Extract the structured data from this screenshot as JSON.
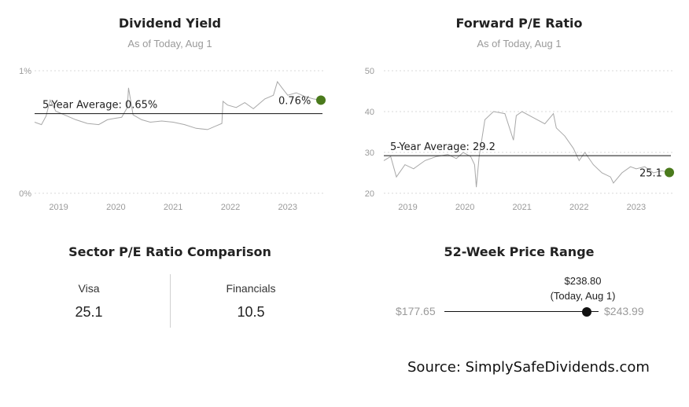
{
  "dividend_yield": {
    "title": "Dividend Yield",
    "subtitle": "As of Today, Aug 1",
    "average_label": "5-Year Average: 0.65%",
    "current_label": "0.76%",
    "colors": {
      "series": "#a8a8a8",
      "average": "#111111",
      "current_dot": "#4a7a1c"
    }
  },
  "forward_pe": {
    "title": "Forward P/E Ratio",
    "subtitle": "As of Today, Aug 1",
    "average_label": "5-Year Average: 29.2",
    "current_label": "25.1",
    "colors": {
      "series": "#a8a8a8",
      "average": "#111111",
      "current_dot": "#4a7a1c"
    }
  },
  "sector_comparison": {
    "title": "Sector P/E Ratio Comparison",
    "items": [
      {
        "name": "Visa",
        "value": "25.1"
      },
      {
        "name": "Financials",
        "value": "10.5"
      }
    ]
  },
  "price_range": {
    "title": "52-Week Price Range",
    "low": "$177.65",
    "high": "$243.99",
    "current": "$238.80",
    "current_note": "(Today, Aug 1)",
    "position_fraction": 0.922
  },
  "source": "Source: SimplySafeDividends.com",
  "chart_data": [
    {
      "type": "line",
      "title": "Dividend Yield",
      "subtitle": "As of Today, Aug 1",
      "ylim": [
        0,
        1
      ],
      "yticks": [
        0,
        1
      ],
      "ytick_labels": [
        "0%",
        "1%"
      ],
      "x_range": [
        2018.58,
        2023.58
      ],
      "xticks": [
        2019,
        2020,
        2021,
        2022,
        2023
      ],
      "xtick_labels": [
        "2019",
        "2020",
        "2021",
        "2022",
        "2023"
      ],
      "grid": true,
      "series": [
        {
          "x": [
            2018.58,
            2018.7,
            2018.78,
            2018.85,
            2018.95,
            2019.1,
            2019.3,
            2019.5,
            2019.7,
            2019.85,
            2019.97,
            2020.1,
            2020.2,
            2020.22,
            2020.3,
            2020.45,
            2020.6,
            2020.8,
            2021.0,
            2021.2,
            2021.4,
            2021.6,
            2021.75,
            2021.85,
            2021.87,
            2021.95,
            2022.1,
            2022.25,
            2022.4,
            2022.5,
            2022.6,
            2022.75,
            2022.82,
            2022.9,
            2023.0,
            2023.15,
            2023.3,
            2023.45,
            2023.58
          ],
          "y": [
            0.58,
            0.56,
            0.63,
            0.76,
            0.67,
            0.64,
            0.6,
            0.57,
            0.56,
            0.6,
            0.61,
            0.62,
            0.7,
            0.86,
            0.64,
            0.6,
            0.58,
            0.59,
            0.58,
            0.56,
            0.53,
            0.52,
            0.55,
            0.57,
            0.75,
            0.72,
            0.7,
            0.74,
            0.69,
            0.73,
            0.77,
            0.8,
            0.91,
            0.86,
            0.8,
            0.82,
            0.79,
            0.77,
            0.76
          ]
        }
      ],
      "average": 0.65,
      "current": {
        "x": 2023.58,
        "y": 0.76
      }
    },
    {
      "type": "line",
      "title": "Forward P/E Ratio",
      "subtitle": "As of Today, Aug 1",
      "ylim": [
        20,
        50
      ],
      "yticks": [
        20,
        30,
        40,
        50
      ],
      "ytick_labels": [
        "20",
        "30",
        "40",
        "50"
      ],
      "x_range": [
        2018.58,
        2023.58
      ],
      "xticks": [
        2019,
        2020,
        2021,
        2022,
        2023
      ],
      "xtick_labels": [
        "2019",
        "2020",
        "2021",
        "2022",
        "2023"
      ],
      "grid": true,
      "series": [
        {
          "x": [
            2018.58,
            2018.7,
            2018.8,
            2018.95,
            2019.1,
            2019.3,
            2019.5,
            2019.7,
            2019.85,
            2019.97,
            2020.1,
            2020.17,
            2020.2,
            2020.25,
            2020.35,
            2020.5,
            2020.7,
            2020.85,
            2020.9,
            2021.0,
            2021.2,
            2021.4,
            2021.55,
            2021.6,
            2021.75,
            2021.9,
            2022.0,
            2022.1,
            2022.25,
            2022.4,
            2022.55,
            2022.6,
            2022.75,
            2022.9,
            2023.0,
            2023.15,
            2023.3,
            2023.45,
            2023.58
          ],
          "y": [
            28,
            29,
            24,
            27,
            26,
            28,
            29,
            29.5,
            28.5,
            30,
            29,
            27,
            21.5,
            29,
            38,
            40,
            39.5,
            33,
            39,
            40,
            38.5,
            37,
            39.5,
            36,
            34,
            31,
            28,
            30,
            27,
            25,
            24,
            22.5,
            25,
            26.5,
            26,
            26.5,
            25,
            25.5,
            25.1
          ]
        }
      ],
      "average": 29.2,
      "current": {
        "x": 2023.58,
        "y": 25.1
      }
    }
  ]
}
